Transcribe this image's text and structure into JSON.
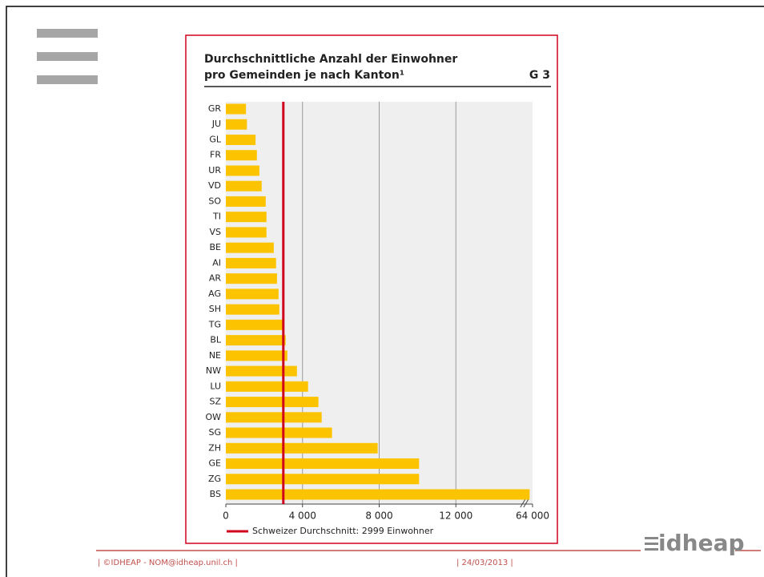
{
  "chart_data": {
    "type": "bar",
    "orientation": "horizontal",
    "title": [
      "Durchschnittliche Anzahl der Einwohner",
      "pro Gemeinden je nach Kanton¹"
    ],
    "figure_label": "G 3",
    "categories": [
      "GR",
      "JU",
      "GL",
      "FR",
      "UR",
      "VD",
      "SO",
      "TI",
      "VS",
      "BE",
      "AI",
      "AR",
      "AG",
      "SH",
      "TG",
      "BL",
      "NE",
      "NW",
      "LU",
      "SZ",
      "OW",
      "SG",
      "ZH",
      "GE",
      "ZG",
      "BS"
    ],
    "values": [
      1050,
      1100,
      1550,
      1620,
      1750,
      1870,
      2080,
      2120,
      2120,
      2500,
      2620,
      2670,
      2750,
      2790,
      3040,
      3120,
      3210,
      3710,
      4290,
      4830,
      5000,
      5540,
      7920,
      10080,
      10080,
      62000
    ],
    "color": "#fcc400",
    "xlim": [
      0,
      64000
    ],
    "xticks": [
      0,
      {
        "value": 4000,
        "label": "4 000"
      },
      {
        "value": 8000,
        "label": "8 000"
      },
      {
        "value": 12000,
        "label": "12 000"
      },
      {
        "value": 64000,
        "label": "64 000"
      }
    ],
    "axis_break": true,
    "grid": true,
    "reference_line": {
      "value": 2999,
      "label": "Schweizer Durchschnitt: 2999 Einwohner",
      "color": "#d0021b"
    }
  },
  "slide": {
    "footer_left": "| ©IDHEAP - NOM@idheap.unil.ch |",
    "footer_date": "| 24/03/2013 |",
    "logo": "idheap"
  }
}
